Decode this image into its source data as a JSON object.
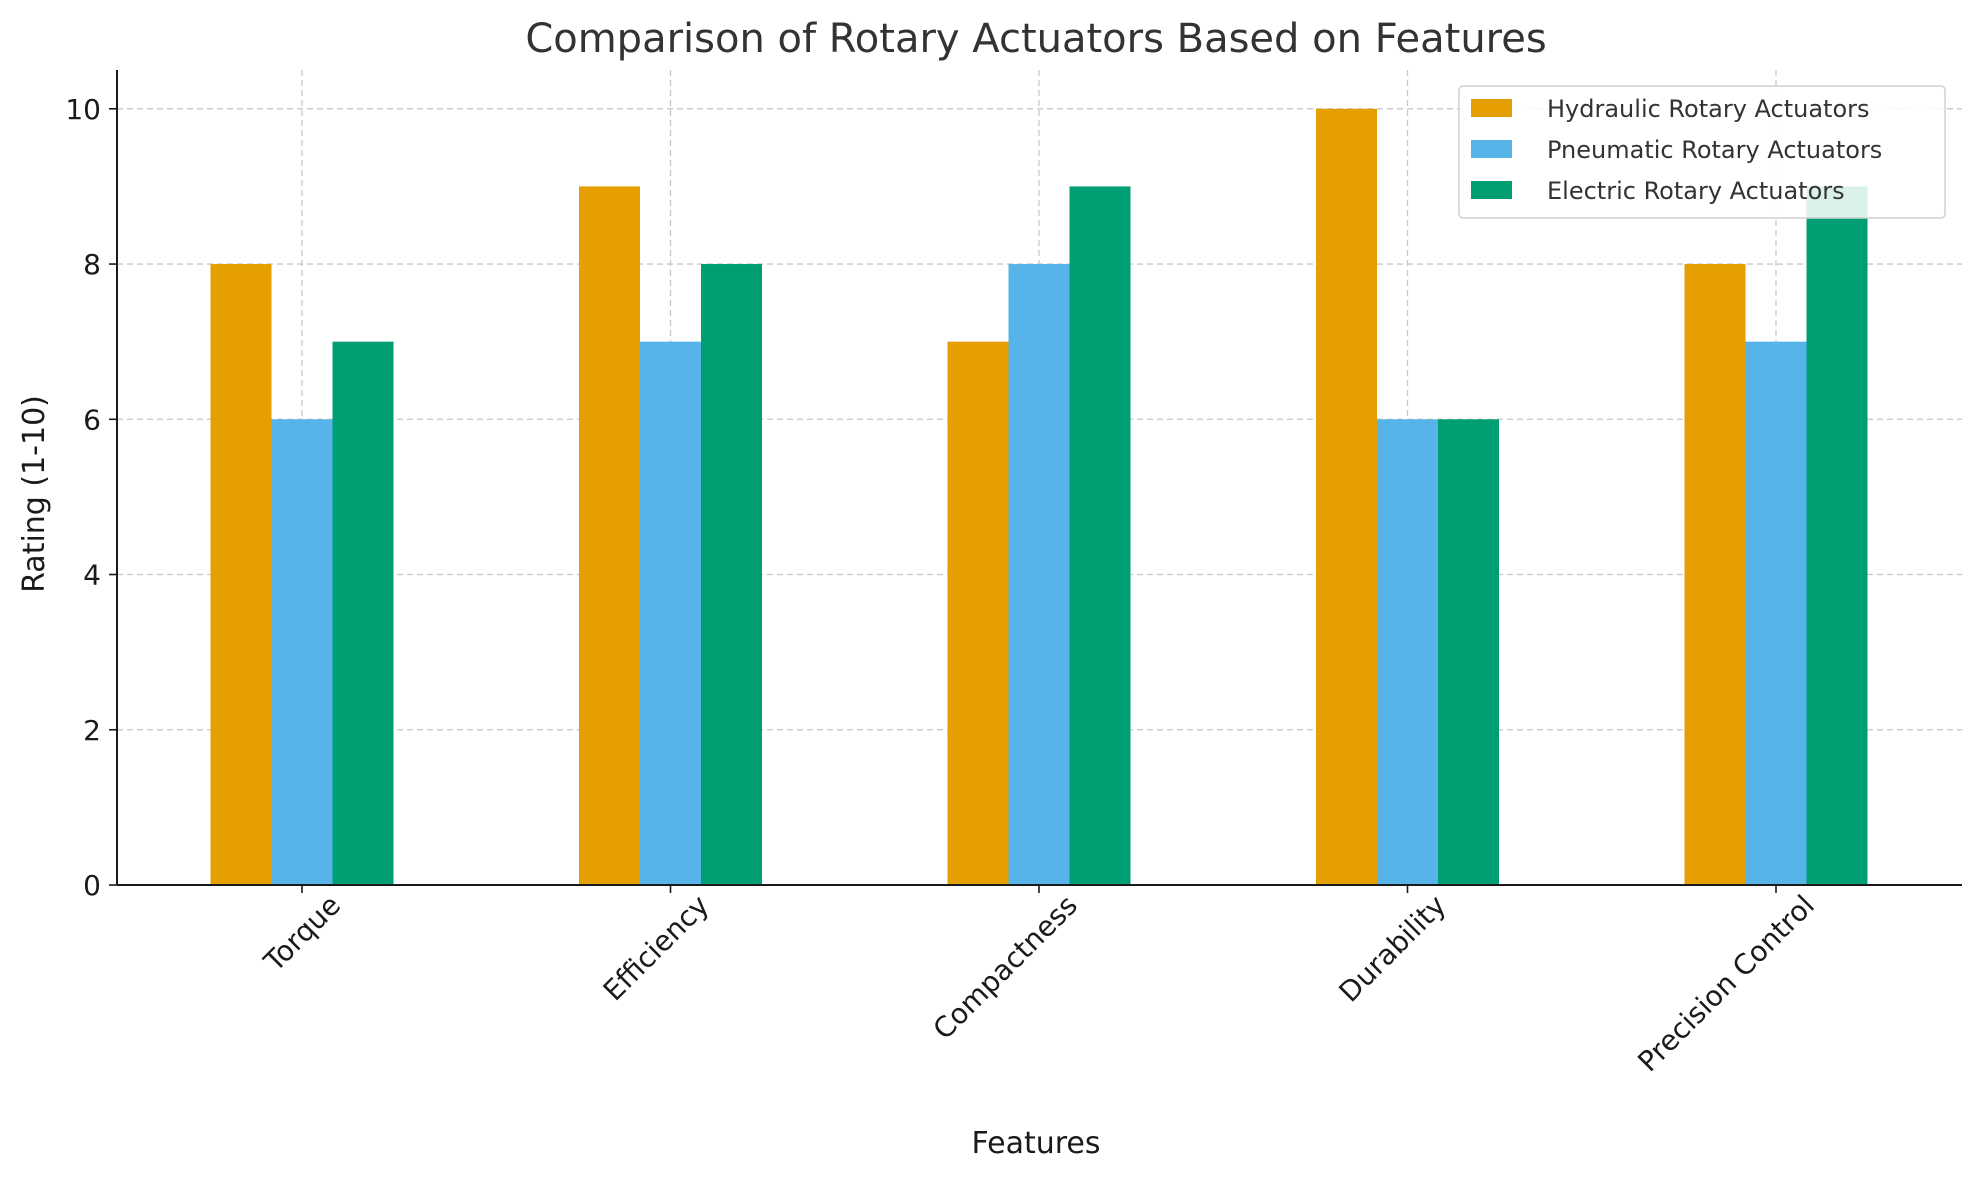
{
  "chart_data": {
    "type": "bar",
    "title": "Comparison of Rotary Actuators Based on Features",
    "xlabel": "Features",
    "ylabel": "Rating (1-10)",
    "categories": [
      "Torque",
      "Efficiency",
      "Compactness",
      "Durability",
      "Precision Control"
    ],
    "series": [
      {
        "name": "Hydraulic Rotary Actuators",
        "color": "#E69F00",
        "values": [
          8,
          9,
          7,
          10,
          8
        ]
      },
      {
        "name": "Pneumatic Rotary Actuators",
        "color": "#56B4E9",
        "values": [
          6,
          7,
          8,
          6,
          7
        ]
      },
      {
        "name": "Electric Rotary Actuators",
        "color": "#009E73",
        "values": [
          7,
          8,
          9,
          6,
          9
        ]
      }
    ],
    "ylim": [
      0,
      10.5
    ],
    "yticks": [
      0,
      2,
      4,
      6,
      8,
      10
    ],
    "grid": true,
    "legend_position": "top-right"
  }
}
